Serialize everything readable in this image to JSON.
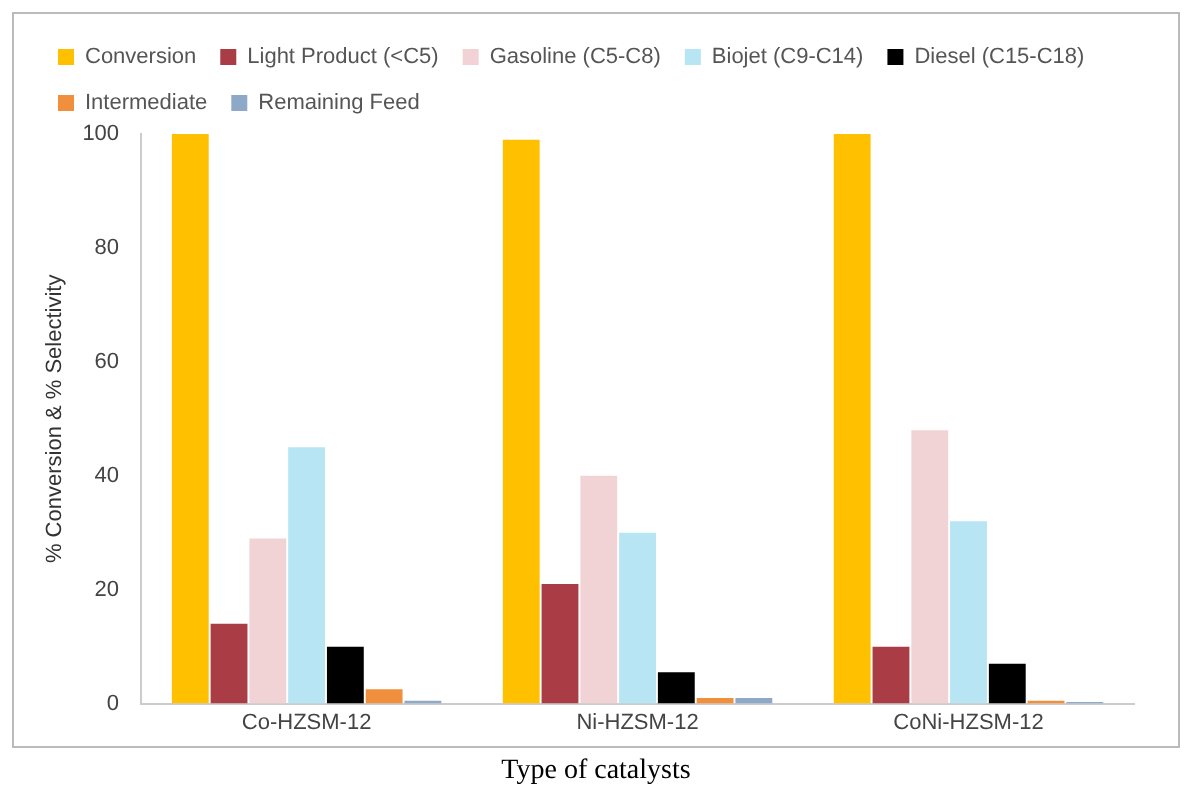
{
  "chart_data": {
    "type": "bar",
    "xlabel": "Type of catalysts",
    "ylabel": "% Conversion & % Selectivity",
    "categories": [
      "Co-HZSM-12",
      "Ni-HZSM-12",
      "CoNi-HZSM-12"
    ],
    "series": [
      {
        "name": "Conversion",
        "color": "#ffc000",
        "values": [
          100,
          99,
          100
        ]
      },
      {
        "name": "Light Product (<C5)",
        "color": "#a93c45",
        "values": [
          14,
          21,
          10
        ]
      },
      {
        "name": "Gasoline (C5-C8)",
        "color": "#f2d3d5",
        "values": [
          29,
          40,
          48
        ]
      },
      {
        "name": "Biojet (C9-C14)",
        "color": "#b7e5f4",
        "values": [
          45,
          30,
          32
        ]
      },
      {
        "name": "Diesel (C15-C18)",
        "color": "#000000",
        "values": [
          10,
          5.5,
          7
        ]
      },
      {
        "name": "Intermediate",
        "color": "#f0903c",
        "values": [
          2.5,
          1,
          0.5
        ]
      },
      {
        "name": "Remaining Feed",
        "color": "#8ea9c8",
        "values": [
          0.5,
          1,
          0.3
        ]
      }
    ],
    "ylim": [
      0,
      100
    ],
    "yticks": [
      0,
      20,
      40,
      60,
      80,
      100
    ],
    "grid": false,
    "legend": "top"
  }
}
